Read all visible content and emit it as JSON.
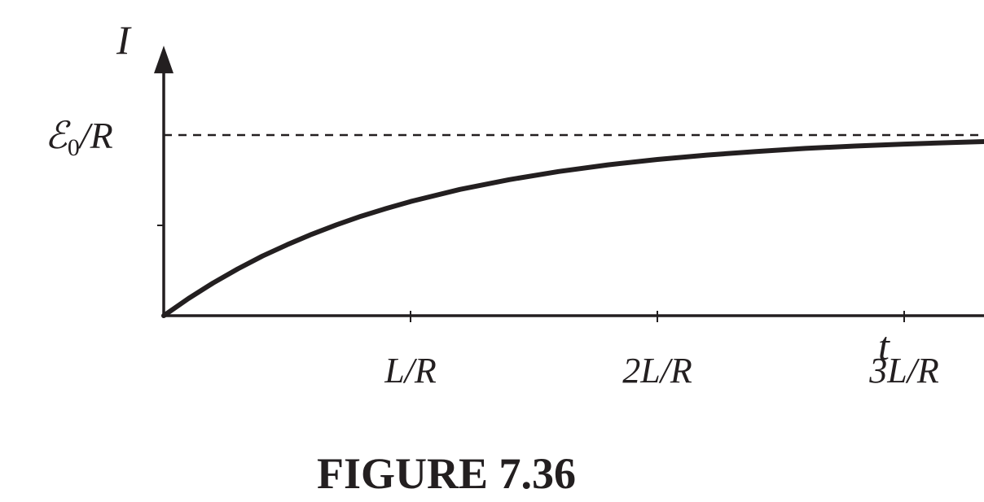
{
  "chart_data": {
    "type": "line",
    "title": "",
    "xlabel": "t",
    "ylabel": "I",
    "x_unit": "L/R",
    "xlim": [
      0,
      3.35
    ],
    "ylim": [
      0,
      1.45
    ],
    "x_ticks": [
      {
        "value": 1,
        "label": "L/R"
      },
      {
        "value": 2,
        "label": "2L/R"
      },
      {
        "value": 3,
        "label": "3L/R"
      }
    ],
    "y_ticks": [
      {
        "value": 0.5,
        "label": ""
      }
    ],
    "asymptote": {
      "value": 1,
      "label": "ℰ0/R",
      "label_main": "ℰ",
      "label_sub": "0",
      "label_tail": "/R",
      "style": "dashed"
    },
    "series": [
      {
        "x": [
          0,
          0.1,
          0.2,
          0.3,
          0.4,
          0.5,
          0.6,
          0.7,
          0.8,
          0.9,
          1.0,
          1.2,
          1.4,
          1.6,
          1.8,
          2.0,
          2.2,
          2.4,
          2.6,
          2.8,
          3.0,
          3.2,
          3.35
        ],
        "y": [
          0,
          0.095,
          0.181,
          0.259,
          0.33,
          0.393,
          0.451,
          0.503,
          0.551,
          0.593,
          0.632,
          0.699,
          0.753,
          0.798,
          0.835,
          0.865,
          0.889,
          0.909,
          0.926,
          0.939,
          0.95,
          0.959,
          0.965
        ]
      }
    ],
    "grid": false,
    "legend": "none"
  },
  "caption": "FIGURE 7.36",
  "colors": {
    "ink": "#231f20",
    "background": "#ffffff"
  }
}
